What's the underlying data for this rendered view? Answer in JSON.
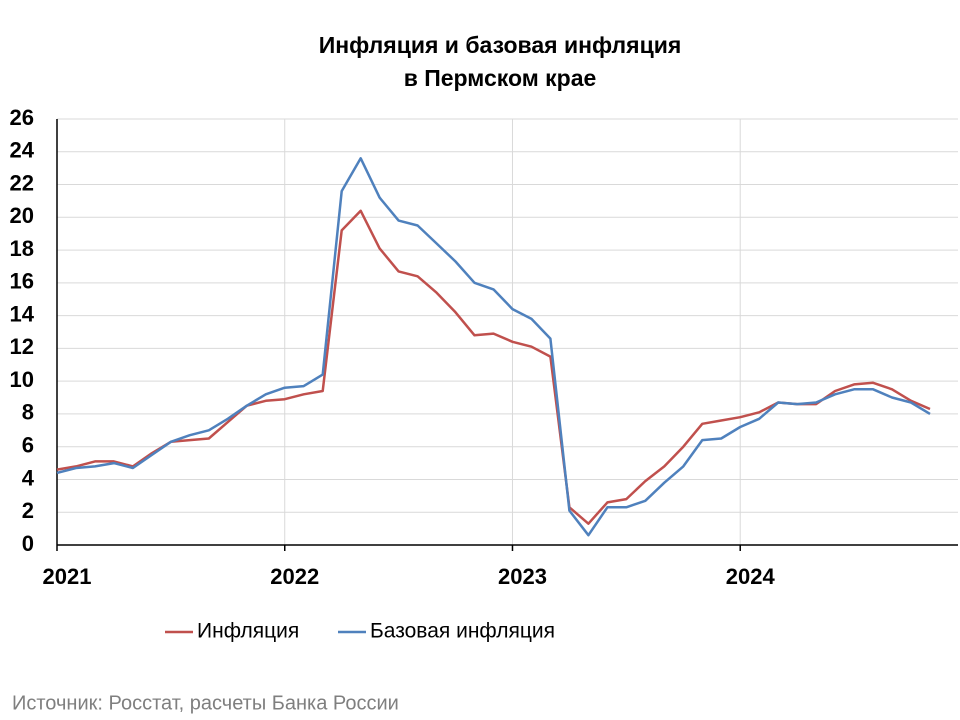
{
  "chart_data": {
    "type": "line",
    "title": [
      "Инфляция и базовая инфляция",
      "в Пермском крае"
    ],
    "categories": [
      "2021",
      null,
      null,
      null,
      null,
      null,
      null,
      null,
      null,
      null,
      null,
      null,
      "2022",
      null,
      null,
      null,
      null,
      null,
      null,
      null,
      null,
      null,
      null,
      null,
      "2023",
      null,
      null,
      null,
      null,
      null,
      null,
      null,
      null,
      null,
      null,
      null,
      "2024",
      null,
      null,
      null,
      null,
      null,
      null,
      null,
      null,
      null,
      null
    ],
    "series": [
      {
        "name": "Инфляция",
        "color": "#c0504d",
        "values": [
          4.6,
          4.8,
          5.1,
          5.1,
          4.8,
          5.6,
          6.3,
          6.4,
          6.5,
          7.5,
          8.5,
          8.8,
          8.9,
          9.2,
          9.4,
          19.2,
          20.4,
          18.1,
          16.7,
          16.4,
          15.4,
          14.2,
          12.8,
          12.9,
          12.4,
          12.1,
          11.5,
          2.3,
          1.3,
          2.6,
          2.8,
          3.9,
          4.8,
          6.0,
          7.4,
          7.6,
          7.8,
          8.1,
          8.7,
          8.6,
          8.6,
          9.4,
          9.8,
          9.9,
          9.5,
          8.8,
          8.3
        ]
      },
      {
        "name": "Базовая инфляция",
        "color": "#4f81bd",
        "values": [
          4.4,
          4.7,
          4.8,
          5.0,
          4.7,
          5.5,
          6.3,
          6.7,
          7.0,
          7.7,
          8.5,
          9.2,
          9.6,
          9.7,
          10.4,
          21.6,
          23.6,
          21.2,
          19.8,
          19.5,
          18.4,
          17.3,
          16.0,
          15.6,
          14.4,
          13.8,
          12.6,
          2.1,
          0.6,
          2.3,
          2.3,
          2.7,
          3.8,
          4.8,
          6.4,
          6.5,
          7.2,
          7.7,
          8.7,
          8.6,
          8.7,
          9.2,
          9.5,
          9.5,
          9.0,
          8.7,
          8.0
        ]
      }
    ],
    "ylim": [
      0,
      26
    ],
    "yticks": [
      0,
      2,
      4,
      6,
      8,
      10,
      12,
      14,
      16,
      18,
      20,
      22,
      24,
      26
    ],
    "grid": true,
    "legend": "bottom",
    "source": "Источник: Росстат, расчеты Банка России"
  }
}
